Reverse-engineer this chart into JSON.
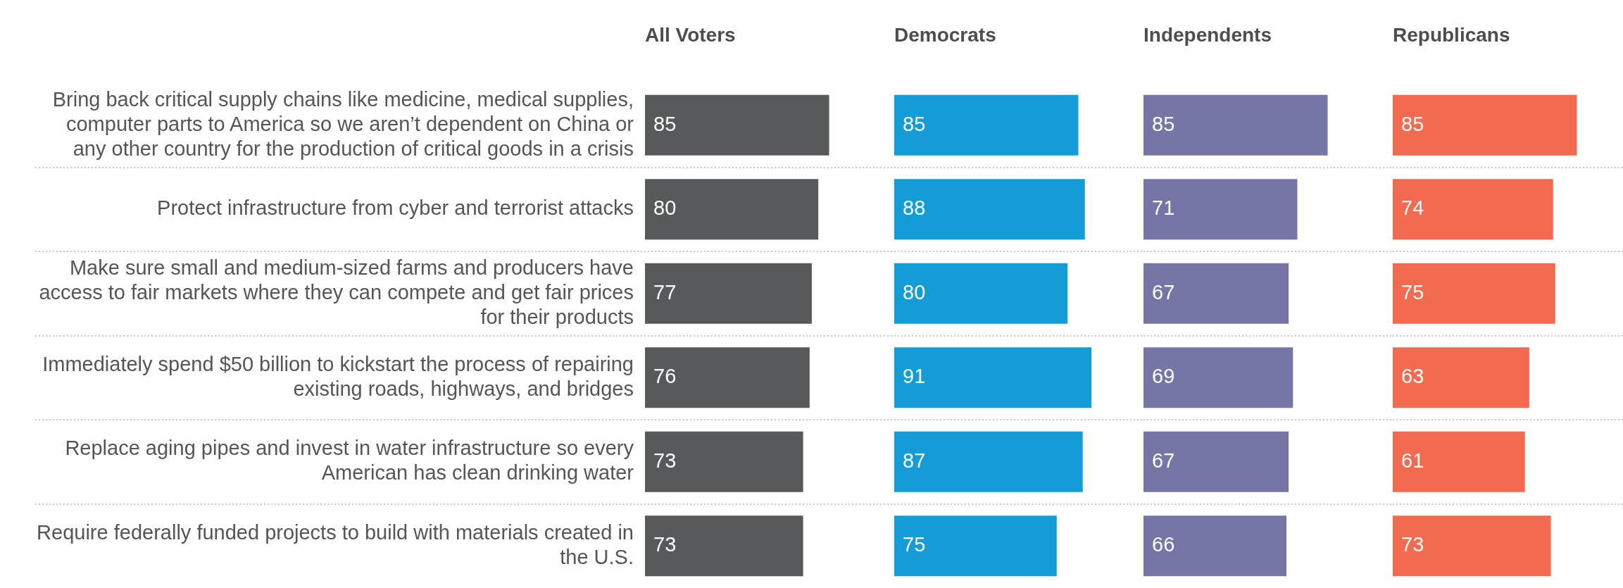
{
  "chart_data": [
    {
      "type": "bar",
      "orientation": "horizontal",
      "title": "All Voters",
      "categories": [
        "Bring back critical supply chains like medicine, medical supplies, computer parts to America so we aren’t dependent on China or any other country for the production of critical goods in a crisis",
        "Protect infrastructure from cyber and terrorist attacks",
        "Make sure small and medium-sized farms and producers have access to fair markets where they can compete and get fair prices for their products",
        "Immediately spend $50 billion to kickstart the process of repairing existing roads, highways, and bridges",
        "Replace aging pipes and invest in water infrastructure so every American has clean drinking water",
        "Require federally funded projects to build with materials created in the U.S."
      ],
      "values": [
        85,
        80,
        77,
        76,
        73,
        73
      ],
      "color": "#58595b",
      "data_labels": true,
      "grid": "y",
      "tick_labels": "y"
    },
    {
      "type": "bar",
      "orientation": "horizontal",
      "title": "Democrats",
      "values": [
        85,
        88,
        80,
        91,
        87,
        75
      ],
      "categories": [
        null,
        null,
        null,
        null,
        null,
        null
      ],
      "color": "#139cd6",
      "data_labels": true,
      "grid": "y",
      "tick_labels": false
    },
    {
      "type": "bar",
      "orientation": "horizontal",
      "title": "Independents",
      "values": [
        85,
        71,
        67,
        69,
        67,
        66
      ],
      "categories": [
        null,
        null,
        null,
        null,
        null,
        null
      ],
      "color": "#7576a6",
      "data_labels": true,
      "grid": "y",
      "tick_labels": false
    },
    {
      "type": "bar",
      "orientation": "horizontal",
      "title": "Republicans",
      "values": [
        85,
        74,
        75,
        63,
        61,
        73
      ],
      "categories": [
        null,
        null,
        null,
        null,
        null,
        null
      ],
      "color": "#f26b50",
      "data_labels": true,
      "grid": "y",
      "tick_labels": false
    }
  ]
}
